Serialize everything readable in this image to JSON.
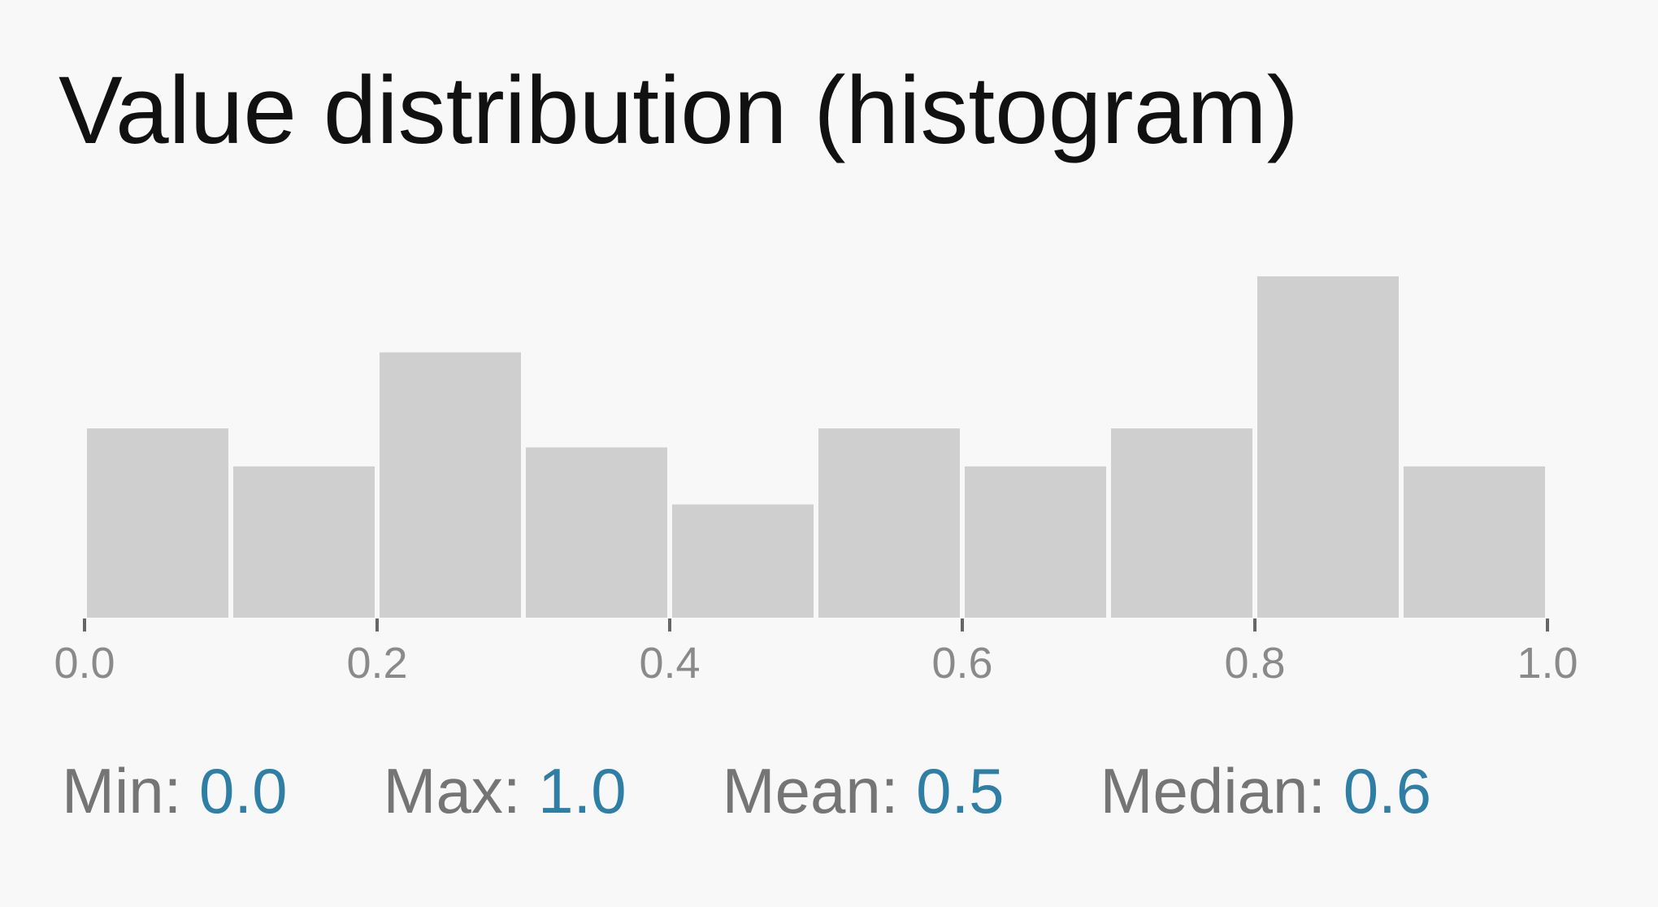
{
  "chart_data": {
    "type": "bar",
    "title": "Value distribution (histogram)",
    "bin_edges": [
      0.0,
      0.1,
      0.2,
      0.3,
      0.4,
      0.5,
      0.6,
      0.7,
      0.8,
      0.9,
      1.0
    ],
    "values": [
      5,
      4,
      7,
      4.5,
      3,
      5,
      4,
      5,
      9,
      4
    ],
    "xlim": [
      0.0,
      1.0
    ],
    "ylim": [
      0,
      9
    ],
    "x_ticks": [
      0.0,
      0.2,
      0.4,
      0.6,
      0.8,
      1.0
    ],
    "x_tick_labels": [
      "0.0",
      "0.2",
      "0.4",
      "0.6",
      "0.8",
      "1.0"
    ],
    "xlabel": "",
    "ylabel": "",
    "grid": false,
    "colors": {
      "bar": "#cfcfcf",
      "bar_gap": "#f8f8f8",
      "axis": "#666666",
      "tick_label": "#8a8a8a"
    }
  },
  "stats": [
    {
      "label": "Min:",
      "value": "0.0"
    },
    {
      "label": "Max:",
      "value": "1.0"
    },
    {
      "label": "Mean:",
      "value": "0.5"
    },
    {
      "label": "Median:",
      "value": "0.6"
    }
  ]
}
